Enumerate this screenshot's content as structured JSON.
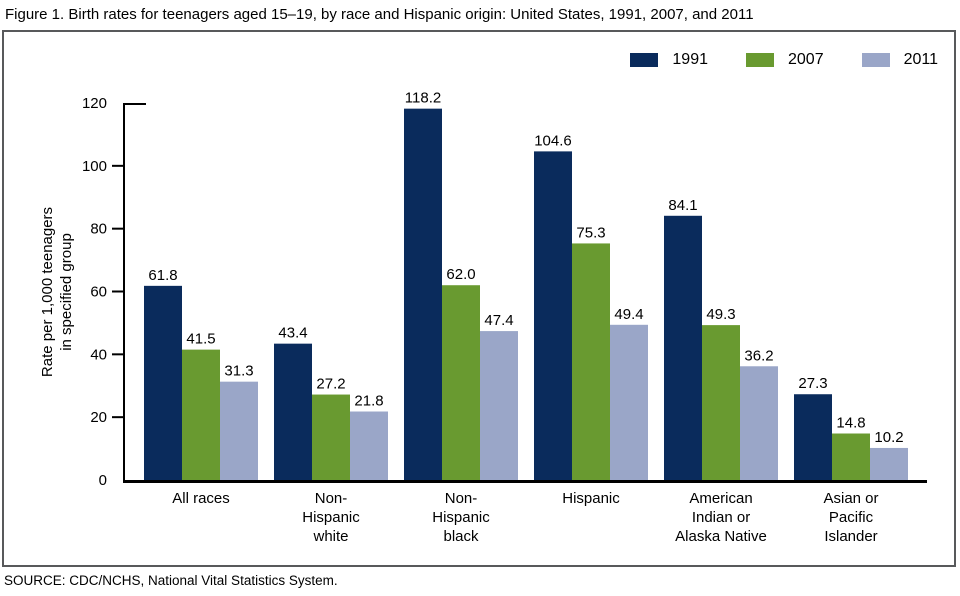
{
  "title": "Figure 1. Birth rates for teenagers aged 15–19, by race and Hispanic origin: United States, 1991, 2007, and 2011",
  "source": "SOURCE: CDC/NCHS, National Vital Statistics System.",
  "chart_data": {
    "type": "bar",
    "title": "Figure 1. Birth rates for teenagers aged 15–19, by race and Hispanic origin: United States, 1991, 2007, and 2011",
    "categories": [
      "All races",
      "Non-Hispanic white",
      "Non-Hispanic black",
      "Hispanic",
      "American Indian or Alaska Native",
      "Asian or Pacific Islander"
    ],
    "category_label_lines": [
      [
        "All races"
      ],
      [
        "Non-",
        "Hispanic",
        "white"
      ],
      [
        "Non-",
        "Hispanic",
        "black"
      ],
      [
        "Hispanic"
      ],
      [
        "American",
        "Indian or",
        "Alaska Native"
      ],
      [
        "Asian or",
        "Pacific",
        "Islander"
      ]
    ],
    "series": [
      {
        "name": "1991",
        "color": "#0a2b5c",
        "values": [
          61.8,
          43.4,
          118.2,
          104.6,
          84.1,
          27.3
        ]
      },
      {
        "name": "2007",
        "color": "#699a30",
        "values": [
          41.5,
          27.2,
          62.0,
          75.3,
          49.3,
          14.8
        ]
      },
      {
        "name": "2011",
        "color": "#9aa6c8",
        "values": [
          31.3,
          21.8,
          47.4,
          49.4,
          36.2,
          10.2
        ]
      }
    ],
    "xlabel": "",
    "ylabel": "Rate per 1,000 teenagers in specified group",
    "ylabel_lines": [
      "Rate per 1,000 teenagers",
      "in specified group"
    ],
    "ylim": [
      0,
      120
    ],
    "yticks": [
      0,
      20,
      40,
      60,
      80,
      100,
      120
    ],
    "grid": false,
    "legend_position": "top-right",
    "bar_value_labels": true,
    "value_label_decimals": 1
  }
}
